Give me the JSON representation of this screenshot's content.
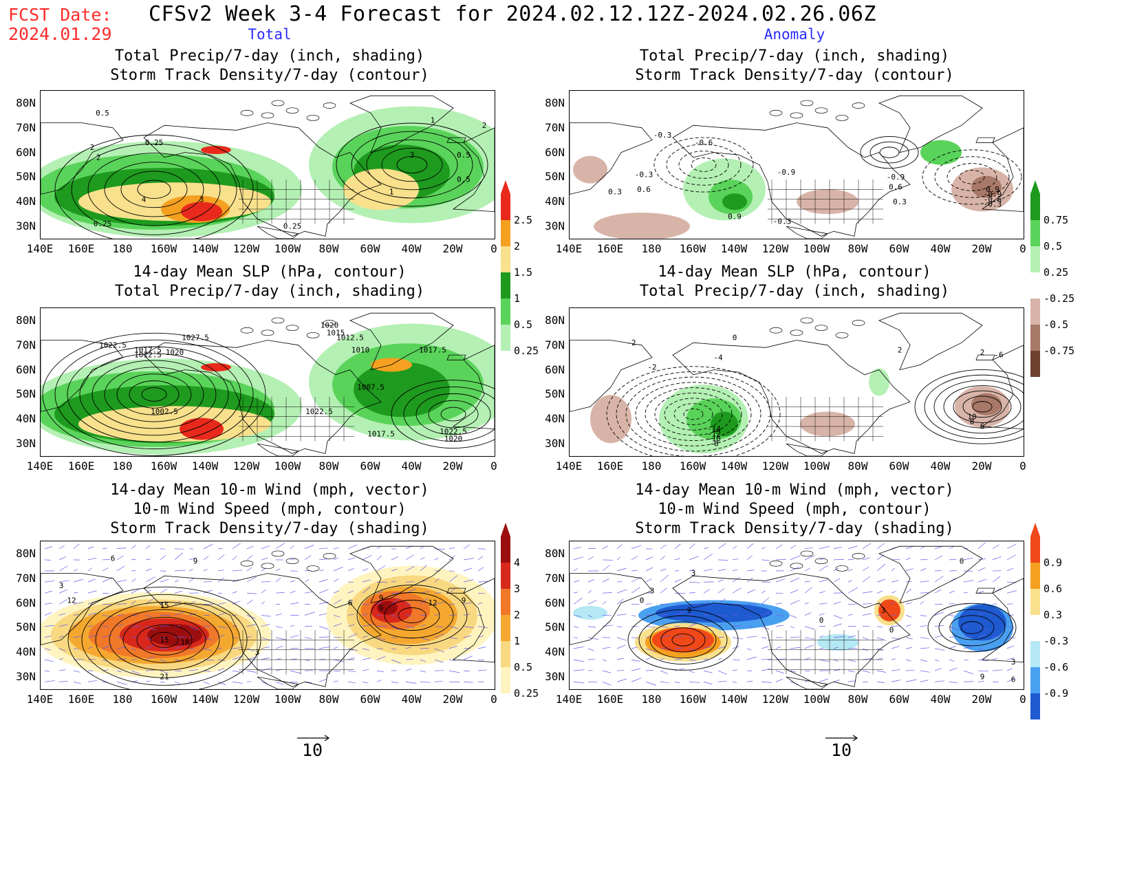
{
  "header": {
    "fcst_line1": "FCST Date:",
    "fcst_line2": "2024.01.29",
    "title": "CFSv2 Week 3-4 Forecast for 2024.02.12.12Z-2024.02.26.06Z",
    "col_total": "Total",
    "col_anomaly": "Anomaly"
  },
  "axes": {
    "lat_ticks": [
      "80N",
      "70N",
      "60N",
      "50N",
      "40N",
      "30N"
    ],
    "lon_ticks": [
      "140E",
      "160E",
      "180",
      "160W",
      "140W",
      "120W",
      "100W",
      "80W",
      "60W",
      "40W",
      "20W",
      "0"
    ]
  },
  "panels": {
    "tl": {
      "title1": "Total Precip/7-day (inch, shading)",
      "title2": "Storm Track Density/7-day (contour)",
      "labels": [
        "0.5",
        "1",
        "2",
        "0.25",
        "0.5",
        "2",
        "4",
        "3",
        "0.25",
        "3",
        "0.5",
        "1",
        "0.25",
        "2"
      ]
    },
    "tr": {
      "title1": "Total Precip/7-day (inch, shading)",
      "title2": "Storm Track Density/7-day (contour)",
      "labels": [
        "-0.3",
        "-0.6",
        "-0.9",
        "-0.3",
        "0.3",
        "0.6",
        "0.9",
        "-0.9",
        "0.9",
        "0.6",
        "0.3",
        "-0.9",
        "-0.6",
        "-0.3",
        "-0.3"
      ]
    },
    "ml": {
      "title1": "14-day Mean SLP (hPa, contour)",
      "title2": "Total Precip/7-day (inch, shading)",
      "labels": [
        "1027.5",
        "1022.5",
        "1017.5",
        "1012.5",
        "1020",
        "1020",
        "1015",
        "1012.5",
        "1010",
        "1017.5",
        "1007.5",
        "1022.5",
        "1002.5",
        "1017.5",
        "1022.5",
        "1020"
      ]
    },
    "mr": {
      "title1": "14-day Mean SLP (hPa, contour)",
      "title2": "Total Precip/7-day (inch, shading)",
      "labels": [
        "-2",
        "0",
        "-2",
        "-4",
        "2",
        "-6",
        "-14",
        "-12",
        "-10",
        "-8",
        "10",
        "8",
        "6",
        "2"
      ]
    },
    "bl": {
      "title1": "14-day Mean 10-m Wind (mph, vector)",
      "title2": "10-m Wind Speed (mph, contour)",
      "title3": "Storm Track Density/7-day (shading)",
      "labels": [
        "6",
        "9",
        "3",
        "12",
        "15",
        "15",
        "18",
        "21",
        "3",
        "6",
        "9",
        "9",
        "12",
        "9"
      ]
    },
    "br": {
      "title1": "14-day Mean 10-m Wind (mph, vector)",
      "title2": "10-m Wind Speed (mph, contour)",
      "title3": "Storm Track Density/7-day (shading)",
      "labels": [
        "3",
        "0",
        "3",
        "9",
        "0",
        "3",
        "0",
        "0",
        "3",
        "9",
        "6"
      ]
    }
  },
  "colorbars": {
    "precip_total": {
      "labels": [
        "2.5",
        "2",
        "1.5",
        "1",
        "0.5",
        "0.25"
      ],
      "colors": [
        "#e8291c",
        "#f5a020",
        "#f8e08c",
        "#1e9a1e",
        "#5ad35a",
        "#b4f0b4"
      ]
    },
    "precip_anom": {
      "labels": [
        "0.75",
        "0.5",
        "0.25",
        "-0.25",
        "-0.5",
        "-0.75"
      ],
      "colors": [
        "#1e9a1e",
        "#5ad35a",
        "#b4f0b4",
        "#ffffff",
        "#d8b4a8",
        "#a87868",
        "#6e4030"
      ]
    },
    "storm_total": {
      "labels": [
        "4",
        "3",
        "2",
        "1",
        "0.5",
        "0.25"
      ],
      "colors": [
        "#9c0e0e",
        "#d8281c",
        "#f07828",
        "#f5a830",
        "#f8d880",
        "#fff4c0"
      ]
    },
    "storm_anom": {
      "labels": [
        "0.9",
        "0.6",
        "0.3",
        "-0.3",
        "-0.6",
        "-0.9"
      ],
      "colors": [
        "#f04818",
        "#f5a020",
        "#f8e08c",
        "#ffffff",
        "#b4e8f4",
        "#4aa0f0",
        "#1e5ad0"
      ]
    }
  },
  "vector_ref": {
    "left": "10",
    "right": "10"
  },
  "colors": {
    "fcst": "#ff2a2a",
    "column_label": "#2a2aff",
    "vectors": "#6a5ae8"
  }
}
